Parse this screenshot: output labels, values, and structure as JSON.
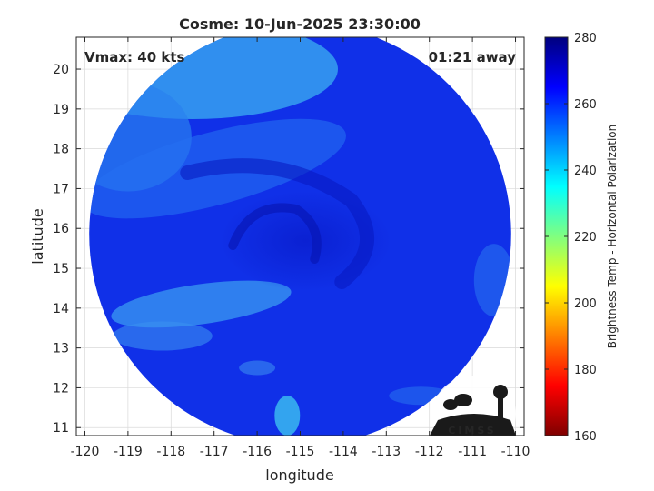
{
  "chart_data": {
    "type": "heatmap",
    "title": "Cosme: 10-Jun-2025 23:30:00",
    "xlabel": "longitude",
    "ylabel": "latitude",
    "xlim": [
      -120.2,
      -109.8
    ],
    "ylim": [
      10.8,
      20.8
    ],
    "xticks": [
      -120,
      -119,
      -118,
      -117,
      -116,
      -115,
      -114,
      -113,
      -112,
      -111,
      -110
    ],
    "yticks": [
      11,
      12,
      13,
      14,
      15,
      16,
      17,
      18,
      19,
      20
    ],
    "grid": true,
    "colorbar": {
      "label": "Brightness Temp - Horizontal Polarization",
      "range": [
        160,
        280
      ],
      "ticks": [
        160,
        180,
        200,
        220,
        240,
        260,
        280
      ],
      "colormap": "jet"
    },
    "annotations": {
      "vmax": "Vmax: 40 kts",
      "time_offset": "01:21 away"
    },
    "storm_center": {
      "lon": -115.3,
      "lat": 15.8
    },
    "swath": {
      "center_lon": -115.0,
      "center_lat": 15.85,
      "radius_deg": 4.9
    }
  },
  "logo": {
    "text": "CIMSS"
  },
  "colors": {
    "background": "#ffffff",
    "axis": "#262626",
    "grid": "#d9d9d9"
  }
}
